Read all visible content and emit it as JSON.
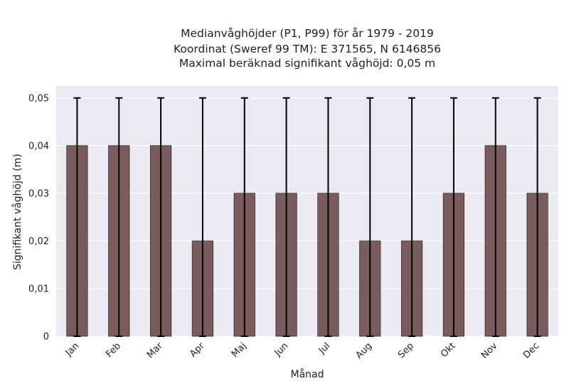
{
  "chart_data": {
    "type": "bar",
    "title_lines": [
      "Medianvåghöjder (P1, P99) för år 1979 - 2019",
      "Koordinat (Sweref 99 TM): E 371565, N 6146856",
      "Maximal beräknad signifikant våghöjd: 0,05 m"
    ],
    "xlabel": "Månad",
    "ylabel": "Signifikant våghöjd (m)",
    "categories": [
      "Jan",
      "Feb",
      "Mar",
      "Apr",
      "Maj",
      "Jun",
      "Jul",
      "Aug",
      "Sep",
      "Okt",
      "Nov",
      "Dec"
    ],
    "values": [
      0.04,
      0.04,
      0.04,
      0.02,
      0.03,
      0.03,
      0.03,
      0.02,
      0.02,
      0.03,
      0.04,
      0.03
    ],
    "error_low": [
      0,
      0,
      0,
      0,
      0,
      0,
      0,
      0,
      0,
      0,
      0,
      0
    ],
    "error_high": [
      0.05,
      0.05,
      0.05,
      0.05,
      0.05,
      0.05,
      0.05,
      0.05,
      0.05,
      0.05,
      0.05,
      0.05
    ],
    "ylim": [
      0,
      0.0525
    ],
    "yticks": [
      0,
      0.01,
      0.02,
      0.03,
      0.04,
      0.05
    ],
    "ytick_labels": [
      "0",
      "0,01",
      "0,02",
      "0,03",
      "0,04",
      "0,05"
    ],
    "grid": true,
    "colors": {
      "bar": "#7b5c5c",
      "bar_edge": "#3a2a2a",
      "error": "#000000",
      "background": "#eaeaf2",
      "grid": "#ffffff"
    }
  }
}
